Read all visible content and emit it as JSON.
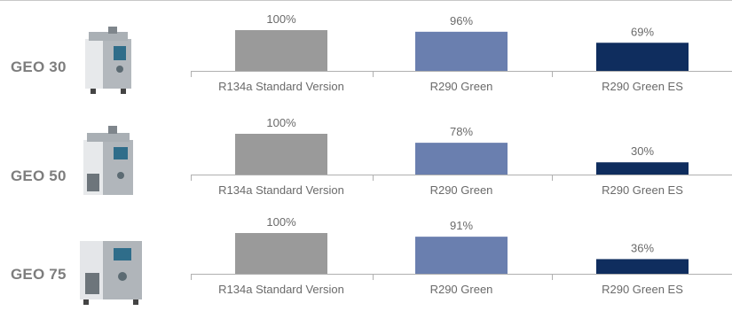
{
  "chart_data": {
    "type": "bar",
    "ylim": [
      0,
      100
    ],
    "categories": [
      "R134a Standard Version",
      "R290 Green",
      "R290 Green ES"
    ],
    "series_colors": [
      "#9a9a9a",
      "#6a7faf",
      "#0f2d5e"
    ],
    "panels": [
      {
        "model": "GEO 30",
        "values": [
          100,
          96,
          69
        ],
        "labels": [
          "100%",
          "96%",
          "69%"
        ]
      },
      {
        "model": "GEO 50",
        "values": [
          100,
          78,
          30
        ],
        "labels": [
          "100%",
          "78%",
          "30%"
        ]
      },
      {
        "model": "GEO 75",
        "values": [
          100,
          91,
          36
        ],
        "labels": [
          "100%",
          "91%",
          "36%"
        ]
      }
    ],
    "product_icons": [
      "ice-machine-geo30-image",
      "ice-machine-geo50-image",
      "ice-machine-geo75-image"
    ]
  }
}
